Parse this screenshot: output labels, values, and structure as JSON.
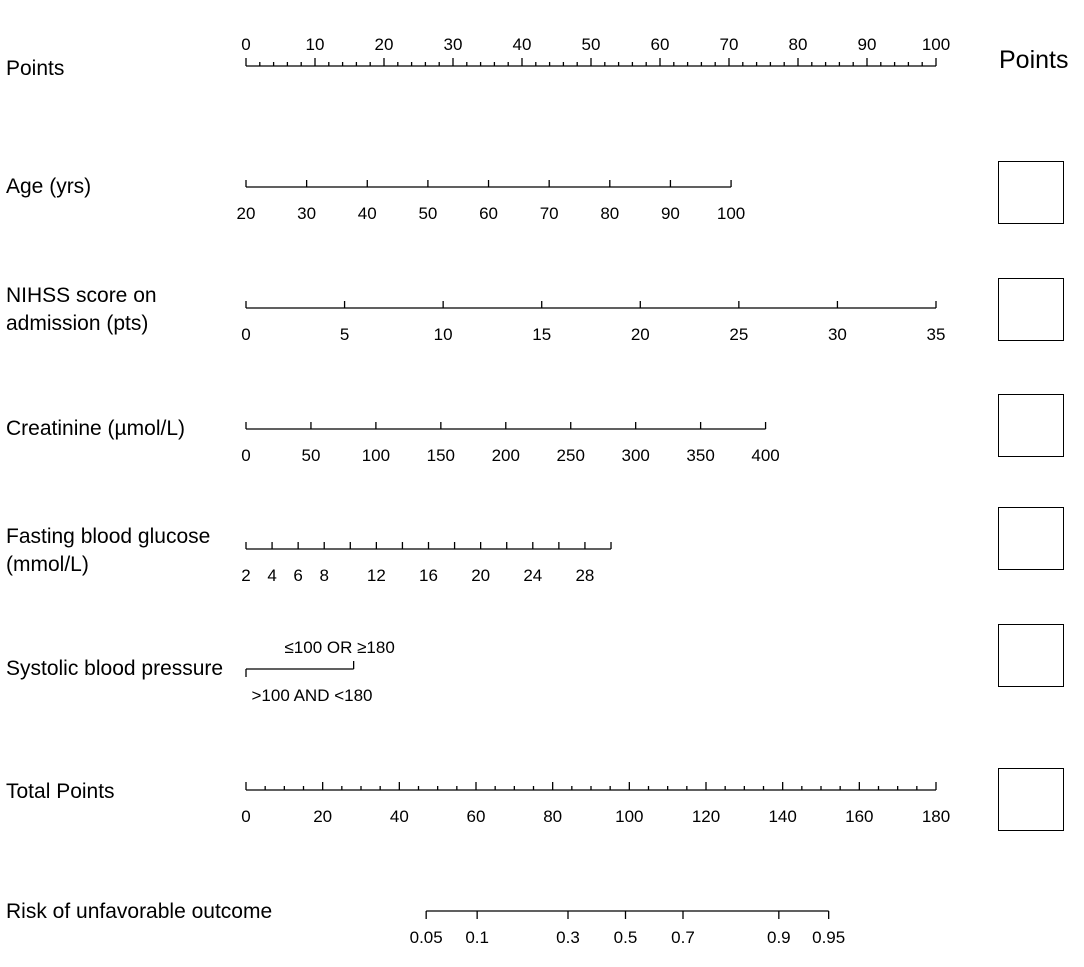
{
  "chart_data": {
    "type": "nomogram",
    "points_header": "Points",
    "rows": [
      {
        "id": "points",
        "label": "Points",
        "ticks": [
          0,
          10,
          20,
          30,
          40,
          50,
          60,
          70,
          80,
          90,
          100
        ],
        "tick_labels": [
          "0",
          "10",
          "20",
          "30",
          "40",
          "50",
          "60",
          "70",
          "80",
          "90",
          "100"
        ],
        "minor_step": 2,
        "range": [
          0,
          100
        ],
        "labels_above": true
      },
      {
        "id": "age",
        "label": "Age (yrs)",
        "ticks": [
          20,
          30,
          40,
          50,
          60,
          70,
          80,
          90,
          100
        ],
        "tick_labels": [
          "20",
          "30",
          "40",
          "50",
          "60",
          "70",
          "80",
          "90",
          "100"
        ],
        "range": [
          20,
          100
        ],
        "points_range": [
          0,
          70.3
        ]
      },
      {
        "id": "nihss",
        "label": "NIHSS score on\nadmission (pts)",
        "ticks": [
          0,
          5,
          10,
          15,
          20,
          25,
          30,
          35
        ],
        "tick_labels": [
          "0",
          "5",
          "10",
          "15",
          "20",
          "25",
          "30",
          "35"
        ],
        "range": [
          0,
          35
        ],
        "points_range": [
          0,
          100
        ]
      },
      {
        "id": "creatinine",
        "label": "Creatinine (µmol/L)",
        "ticks": [
          0,
          50,
          100,
          150,
          200,
          250,
          300,
          350,
          400
        ],
        "tick_labels": [
          "0",
          "50",
          "100",
          "150",
          "200",
          "250",
          "300",
          "350",
          "400"
        ],
        "range": [
          0,
          400
        ],
        "points_range": [
          0,
          75.3
        ]
      },
      {
        "id": "glucose",
        "label": "Fasting blood glucose\n(mmol/L)",
        "ticks": [
          2,
          4,
          6,
          8,
          10,
          12,
          14,
          16,
          18,
          20,
          22,
          24,
          26,
          28,
          30
        ],
        "tick_labels": [
          "2",
          "4",
          "6",
          "8",
          "",
          "12",
          "",
          "16",
          "",
          "20",
          "",
          "24",
          "",
          "28",
          ""
        ],
        "range": [
          2,
          30
        ],
        "points_range": [
          0,
          52.9
        ]
      },
      {
        "id": "sbp",
        "label": "Systolic blood pressure",
        "categories": [
          ">100 AND <180",
          "≤100 OR ≥180"
        ],
        "points": [
          0,
          15.6
        ]
      },
      {
        "id": "total",
        "label": "Total Points",
        "ticks": [
          0,
          20,
          40,
          60,
          80,
          100,
          120,
          140,
          160,
          180
        ],
        "tick_labels": [
          "0",
          "20",
          "40",
          "60",
          "80",
          "100",
          "120",
          "140",
          "160",
          "180"
        ],
        "minor_step": 5,
        "range": [
          0,
          180
        ]
      },
      {
        "id": "risk",
        "label": "Risk of unfavorable outcome",
        "ticks": [
          0.05,
          0.1,
          0.3,
          0.5,
          0.7,
          0.9,
          0.95
        ],
        "tick_labels": [
          "0.05",
          "0.1",
          "0.3",
          "0.5",
          "0.7",
          "0.9",
          "0.95"
        ],
        "total_points_at_ticks": [
          47.0,
          60.3,
          84.0,
          99.0,
          114.0,
          139.0,
          152.0
        ]
      }
    ]
  }
}
